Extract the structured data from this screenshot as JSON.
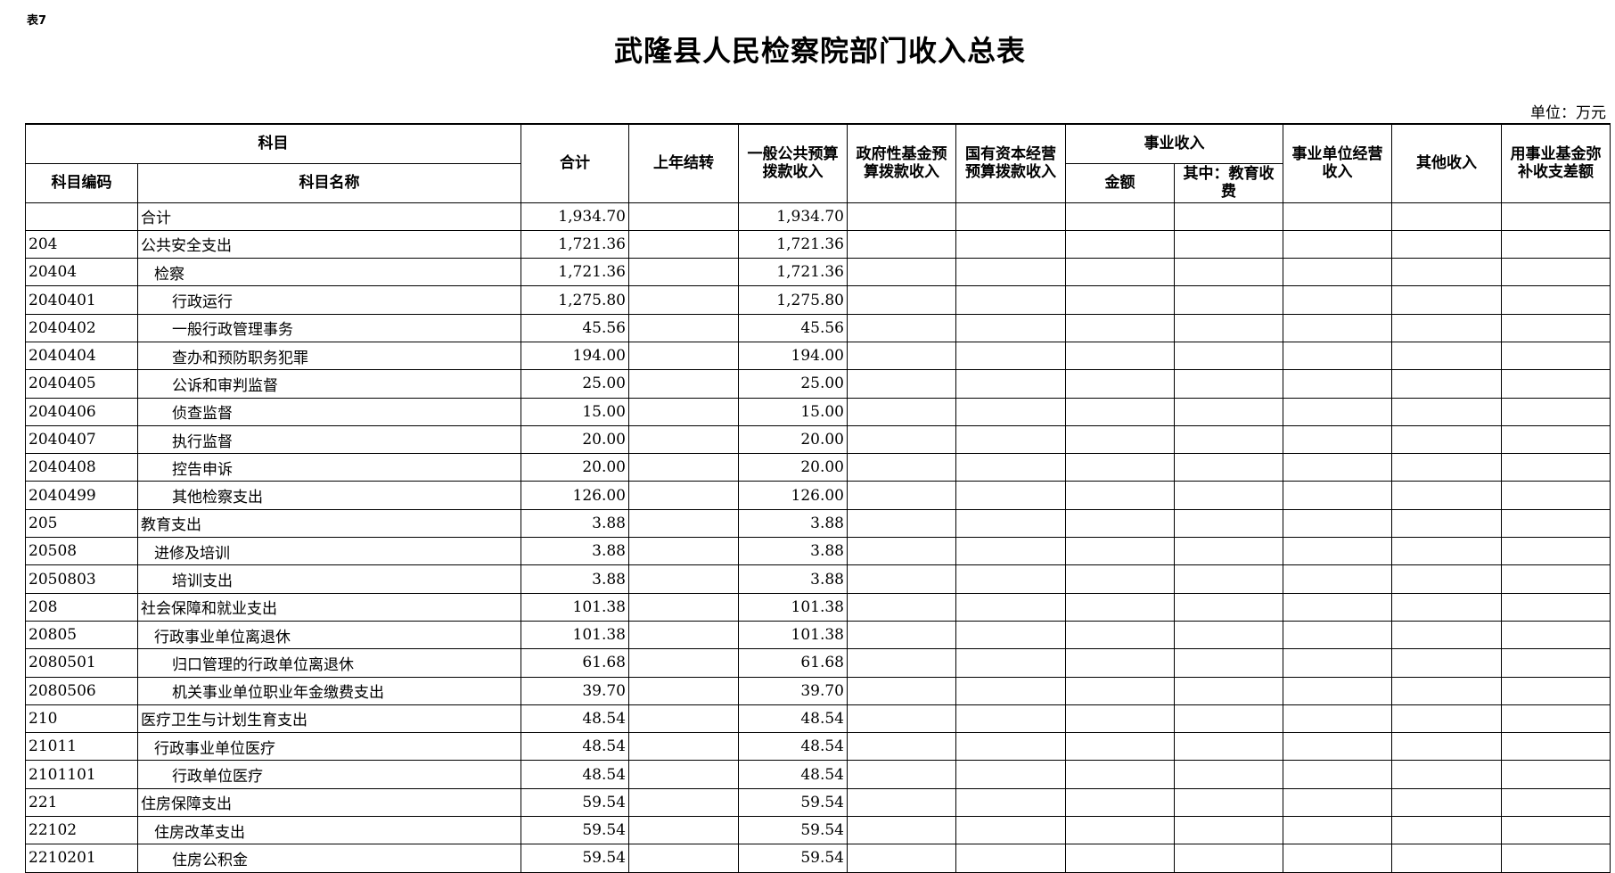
{
  "table_no": "表7",
  "title": "武隆县人民检察院部门收入总表",
  "unit": "单位：万元",
  "headers": {
    "kemu": "科目",
    "code": "科目编码",
    "name": "科目名称",
    "total": "合计",
    "carryover": "上年结转",
    "general": "一般公共预算拨款收入",
    "gov_fund": "政府性基金预算拨款收入",
    "state_capital": "国有资本经营预算拨款收入",
    "business": "事业收入",
    "amount": "金额",
    "edu_fee": "其中：教育收费",
    "biz_operation": "事业单位经营收入",
    "other": "其他收入",
    "fund_cover": "用事业基金弥补收支差额"
  },
  "rows": [
    {
      "code": "",
      "name": "合计",
      "level": 0,
      "total": "1,934.70",
      "general": "1,934.70"
    },
    {
      "code": "204",
      "name": "公共安全支出",
      "level": 0,
      "total": "1,721.36",
      "general": "1,721.36"
    },
    {
      "code": "20404",
      "name": "检察",
      "level": 1,
      "total": "1,721.36",
      "general": "1,721.36"
    },
    {
      "code": "2040401",
      "name": "行政运行",
      "level": 2,
      "total": "1,275.80",
      "general": "1,275.80"
    },
    {
      "code": "2040402",
      "name": "一般行政管理事务",
      "level": 2,
      "total": "45.56",
      "general": "45.56"
    },
    {
      "code": "2040404",
      "name": "查办和预防职务犯罪",
      "level": 2,
      "total": "194.00",
      "general": "194.00"
    },
    {
      "code": "2040405",
      "name": "公诉和审判监督",
      "level": 2,
      "total": "25.00",
      "general": "25.00"
    },
    {
      "code": "2040406",
      "name": "侦查监督",
      "level": 2,
      "total": "15.00",
      "general": "15.00"
    },
    {
      "code": "2040407",
      "name": "执行监督",
      "level": 2,
      "total": "20.00",
      "general": "20.00"
    },
    {
      "code": "2040408",
      "name": "控告申诉",
      "level": 2,
      "total": "20.00",
      "general": "20.00"
    },
    {
      "code": "2040499",
      "name": "其他检察支出",
      "level": 2,
      "total": "126.00",
      "general": "126.00"
    },
    {
      "code": "205",
      "name": "教育支出",
      "level": 0,
      "total": "3.88",
      "general": "3.88"
    },
    {
      "code": "20508",
      "name": "进修及培训",
      "level": 1,
      "total": "3.88",
      "general": "3.88"
    },
    {
      "code": "2050803",
      "name": "培训支出",
      "level": 2,
      "total": "3.88",
      "general": "3.88"
    },
    {
      "code": "208",
      "name": "社会保障和就业支出",
      "level": 0,
      "total": "101.38",
      "general": "101.38"
    },
    {
      "code": "20805",
      "name": "行政事业单位离退休",
      "level": 1,
      "total": "101.38",
      "general": "101.38"
    },
    {
      "code": "2080501",
      "name": "归口管理的行政单位离退休",
      "level": 2,
      "total": "61.68",
      "general": "61.68"
    },
    {
      "code": "2080506",
      "name": "机关事业单位职业年金缴费支出",
      "level": 2,
      "total": "39.70",
      "general": "39.70"
    },
    {
      "code": "210",
      "name": "医疗卫生与计划生育支出",
      "level": 0,
      "total": "48.54",
      "general": "48.54"
    },
    {
      "code": "21011",
      "name": "行政事业单位医疗",
      "level": 1,
      "total": "48.54",
      "general": "48.54"
    },
    {
      "code": "2101101",
      "name": "行政单位医疗",
      "level": 2,
      "total": "48.54",
      "general": "48.54"
    },
    {
      "code": "221",
      "name": "住房保障支出",
      "level": 0,
      "total": "59.54",
      "general": "59.54"
    },
    {
      "code": "22102",
      "name": "住房改革支出",
      "level": 1,
      "total": "59.54",
      "general": "59.54"
    },
    {
      "code": "2210201",
      "name": "住房公积金",
      "level": 2,
      "total": "59.54",
      "general": "59.54"
    }
  ]
}
